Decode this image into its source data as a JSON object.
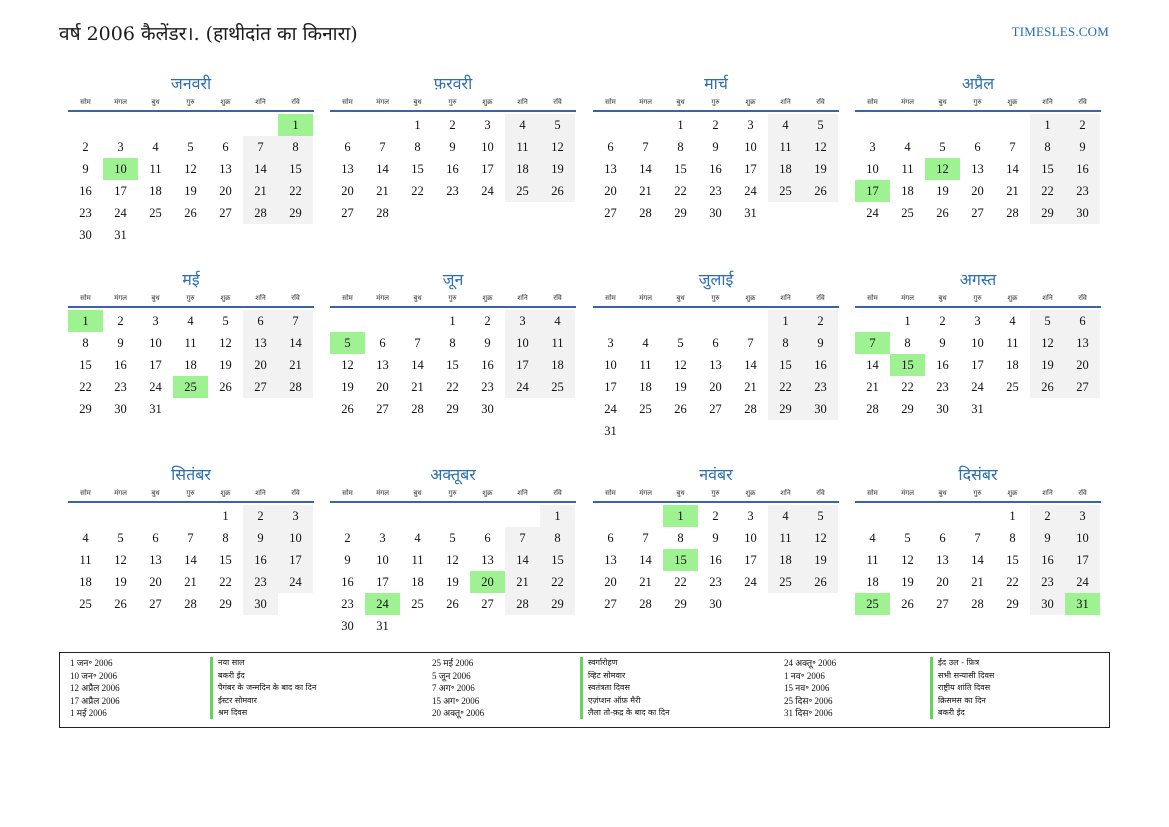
{
  "header": {
    "title": "वर्ष 2006 कैलेंडर।. (हाथीदांत का किनारा)",
    "site": "TIMESLES.COM"
  },
  "weekdays": [
    "सोम",
    "मंगल",
    "बुध",
    "गुरु",
    "शुक्र",
    "शनि",
    "रवि"
  ],
  "colors": {
    "month_title": "#2c6fb0",
    "weekday_rule": "#3a64a8",
    "weekend_bg": "#f2f2f2",
    "holiday_bg": "#9ef291",
    "holiday_bar": "#66d45a"
  },
  "months": [
    {
      "name": "जनवरी",
      "start": 6,
      "days": 31,
      "holidays": [
        1,
        10
      ]
    },
    {
      "name": "फ़रवरी",
      "start": 2,
      "days": 28,
      "holidays": []
    },
    {
      "name": "मार्च",
      "start": 2,
      "days": 31,
      "holidays": []
    },
    {
      "name": "अप्रैल",
      "start": 5,
      "days": 30,
      "holidays": [
        12,
        17
      ]
    },
    {
      "name": "मई",
      "start": 0,
      "days": 31,
      "holidays": [
        1,
        25
      ]
    },
    {
      "name": "जून",
      "start": 3,
      "days": 30,
      "holidays": [
        5
      ]
    },
    {
      "name": "जुलाई",
      "start": 5,
      "days": 31,
      "holidays": []
    },
    {
      "name": "अगस्त",
      "start": 1,
      "days": 31,
      "holidays": [
        7,
        15
      ]
    },
    {
      "name": "सितंबर",
      "start": 4,
      "days": 30,
      "holidays": []
    },
    {
      "name": "अक्तूबर",
      "start": 6,
      "days": 31,
      "holidays": [
        20,
        24
      ]
    },
    {
      "name": "नवंबर",
      "start": 2,
      "days": 30,
      "holidays": [
        1,
        15
      ]
    },
    {
      "name": "दिसंबर",
      "start": 4,
      "days": 31,
      "holidays": [
        25,
        31
      ]
    }
  ],
  "holiday_list": {
    "col1_dates": [
      "1 जन॰ 2006",
      "10 जन॰ 2006",
      "12 अप्रैल 2006",
      "17 अप्रैल 2006",
      "1 मई 2006"
    ],
    "col1_names": [
      "नया साल",
      "बकरी ईद",
      "पैगंबर के जन्मदिन के बाद का दिन",
      "ईस्टर सोमवार",
      "श्रम दिवस"
    ],
    "col2_dates": [
      "25 मई 2006",
      "5 जून 2006",
      "7 अग॰ 2006",
      "15 अग॰ 2006",
      "20 अक्तू॰ 2006"
    ],
    "col2_names": [
      "स्वर्गारोहण",
      "व्हिट सोमवार",
      "स्वतंत्रता दिवस",
      "एज़ंप्शन ऑफ़ मैरी",
      "लैला तो-क़द्र के बाद का दिन"
    ],
    "col3_dates": [
      "24 अक्तू॰ 2006",
      "1 नव॰ 2006",
      "15 नव॰ 2006",
      "25 दिस॰ 2006",
      "31 दिस॰ 2006"
    ],
    "col3_names": [
      "ईद उल - फ़ित्र",
      "सभी सन्यासी दिवस",
      "राष्ट्रीय शांति दिवस",
      "क्रिसमस का दिन",
      "बकरी ईद"
    ]
  }
}
